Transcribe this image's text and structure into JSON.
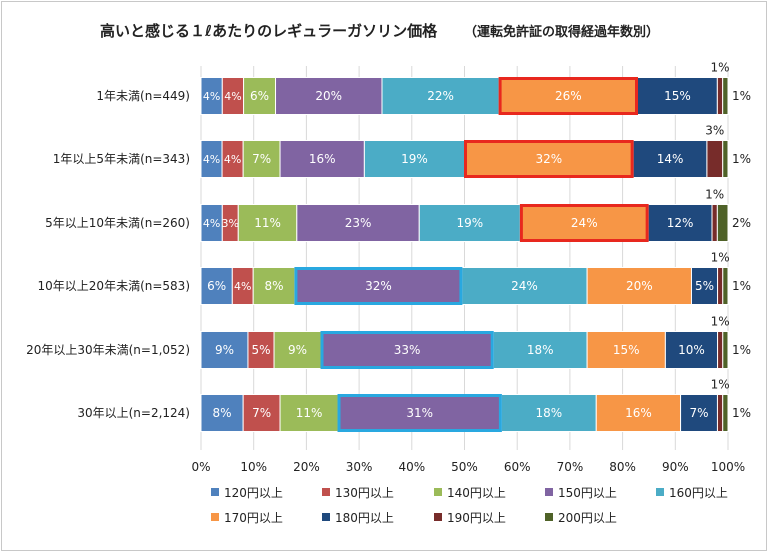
{
  "chart_data": {
    "type": "bar",
    "orientation": "horizontal",
    "stacked": "percent",
    "title": "高いと感じる１ℓあたりのレギュラーガソリン価格",
    "subtitle": "（運転免許証の取得経過年数別）",
    "categories": [
      "1年未満(n=449)",
      "1年以上5年未満(n=343)",
      "5年以上10年未満(n=260)",
      "10年以上20年未満(n=583)",
      "20年以上30年未満(n=1,052)",
      "30年以上(n=2,124)"
    ],
    "series": [
      {
        "name": "120円以上",
        "color": "#4f81bd",
        "values": [
          4,
          4,
          4,
          6,
          9,
          8
        ],
        "labels": [
          "4%",
          "4%",
          "4%",
          "6%",
          "9%",
          "8%"
        ]
      },
      {
        "name": "130円以上",
        "color": "#c0504d",
        "values": [
          4,
          4,
          3,
          4,
          5,
          7
        ],
        "labels": [
          "4%",
          "4%",
          "3%",
          "4%",
          "5%",
          "7%"
        ]
      },
      {
        "name": "140円以上",
        "color": "#9bbb59",
        "values": [
          6,
          7,
          11,
          8,
          9,
          11
        ],
        "labels": [
          "6%",
          "7%",
          "11%",
          "8%",
          "9%",
          "11%"
        ]
      },
      {
        "name": "150円以上",
        "color": "#8064a2",
        "values": [
          20,
          16,
          23,
          32,
          33,
          31
        ],
        "labels": [
          "20%",
          "16%",
          "23%",
          "32%",
          "33%",
          "31%"
        ]
      },
      {
        "name": "160円以上",
        "color": "#4bacc6",
        "values": [
          22,
          19,
          19,
          24,
          18,
          18
        ],
        "labels": [
          "22%",
          "19%",
          "19%",
          "24%",
          "18%",
          "18%"
        ]
      },
      {
        "name": "170円以上",
        "color": "#f79646",
        "values": [
          26,
          32,
          24,
          20,
          15,
          16
        ],
        "labels": [
          "26%",
          "32%",
          "24%",
          "20%",
          "15%",
          "16%"
        ]
      },
      {
        "name": "180円以上",
        "color": "#1f497d",
        "values": [
          15,
          14,
          12,
          5,
          10,
          7
        ],
        "labels": [
          "15%",
          "14%",
          "12%",
          "5%",
          "10%",
          "7%"
        ]
      },
      {
        "name": "190円以上",
        "color": "#772c2a",
        "values": [
          1,
          3,
          1,
          1,
          1,
          1
        ],
        "labels": [
          "1%",
          "3%",
          "1%",
          "1%",
          "1%",
          "1%"
        ]
      },
      {
        "name": "200円以上",
        "color": "#4f6228",
        "values": [
          1,
          1,
          2,
          1,
          1,
          1
        ],
        "labels": [
          "1%",
          "1%",
          "2%",
          "1%",
          "1%",
          "1%"
        ]
      }
    ],
    "highlights": [
      {
        "category_index": 0,
        "series_index": 5,
        "color": "#e8281e"
      },
      {
        "category_index": 1,
        "series_index": 5,
        "color": "#e8281e"
      },
      {
        "category_index": 2,
        "series_index": 5,
        "color": "#e8281e"
      },
      {
        "category_index": 3,
        "series_index": 3,
        "color": "#29a8e0"
      },
      {
        "category_index": 4,
        "series_index": 3,
        "color": "#29a8e0"
      },
      {
        "category_index": 5,
        "series_index": 3,
        "color": "#29a8e0"
      }
    ],
    "x_ticks": [
      "0%",
      "10%",
      "20%",
      "30%",
      "40%",
      "50%",
      "60%",
      "70%",
      "80%",
      "90%",
      "100%"
    ],
    "xlim": [
      0,
      100
    ],
    "grid": true,
    "legend_position": "bottom"
  }
}
